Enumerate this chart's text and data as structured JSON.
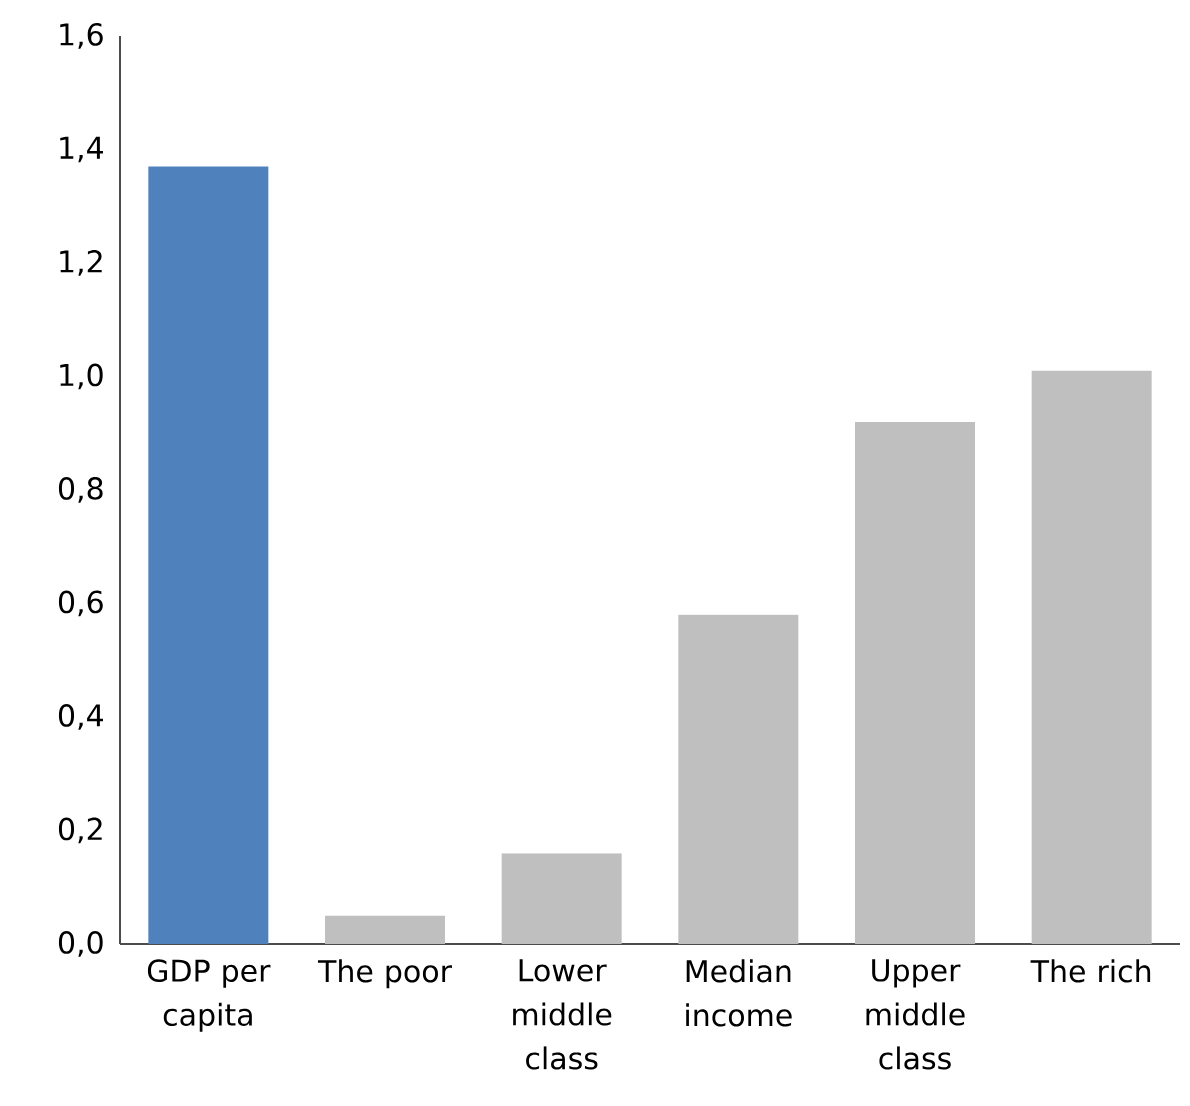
{
  "chart_data": {
    "type": "bar",
    "categories": [
      "GDP per capita",
      "The poor",
      "Lower middle class",
      "Median income",
      "Upper middle class",
      "The rich"
    ],
    "values": [
      1.37,
      0.05,
      0.16,
      0.58,
      0.92,
      1.01
    ],
    "colors": [
      "#4f81bd",
      "#bfbfbf",
      "#bfbfbf",
      "#bfbfbf",
      "#bfbfbf",
      "#bfbfbf"
    ],
    "ylim": [
      0,
      1.6
    ],
    "yticks": [
      {
        "value": 0,
        "label": "0,0"
      },
      {
        "value": 0.2,
        "label": "0,2"
      },
      {
        "value": 0.4,
        "label": "0,4"
      },
      {
        "value": 0.6,
        "label": "0,6"
      },
      {
        "value": 0.8,
        "label": "0,8"
      },
      {
        "value": 1.0,
        "label": "1,0"
      },
      {
        "value": 1.2,
        "label": "1,2"
      },
      {
        "value": 1.4,
        "label": "1,4"
      },
      {
        "value": 1.6,
        "label": "1,6"
      }
    ],
    "grid": false
  }
}
